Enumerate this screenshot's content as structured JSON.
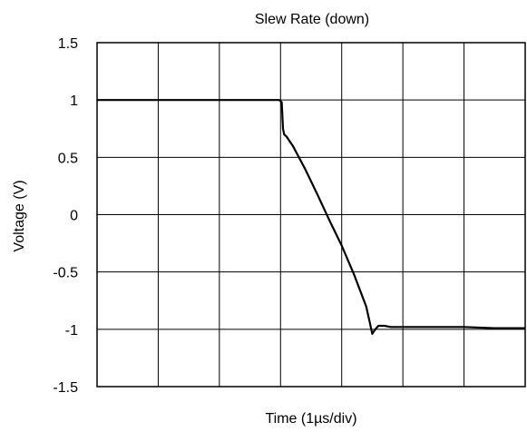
{
  "chart_data": {
    "type": "line",
    "title": "Slew Rate (down)",
    "xlabel": "Time (1µs/div)",
    "ylabel": "Voltage (V)",
    "xlim": [
      0,
      7
    ],
    "ylim": [
      -1.5,
      1.5
    ],
    "x_divisions": 7,
    "yticks": [
      1.5,
      1,
      0.5,
      0,
      -0.5,
      -1,
      -1.5
    ],
    "ytick_labels": [
      "1.5",
      "1",
      "0.5",
      "0",
      "-0.5",
      "-1",
      "-1.5"
    ],
    "grid": true,
    "series": [
      {
        "color": "#000000",
        "x": [
          0,
          0.5,
          1.0,
          1.5,
          2.0,
          2.5,
          2.98,
          3.02,
          3.04,
          3.06,
          3.1,
          3.2,
          3.4,
          3.6,
          3.8,
          4.0,
          4.2,
          4.4,
          4.45,
          4.5,
          4.55,
          4.6,
          4.7,
          4.8,
          5.0,
          5.5,
          6.0,
          6.5,
          7.0
        ],
        "y": [
          1.0,
          1.0,
          1.0,
          1.0,
          1.0,
          1.0,
          1.0,
          0.98,
          0.75,
          0.7,
          0.68,
          0.6,
          0.4,
          0.18,
          -0.05,
          -0.27,
          -0.52,
          -0.8,
          -0.92,
          -1.04,
          -1.0,
          -0.97,
          -0.97,
          -0.98,
          -0.98,
          -0.98,
          -0.98,
          -0.99,
          -0.99
        ]
      }
    ]
  }
}
